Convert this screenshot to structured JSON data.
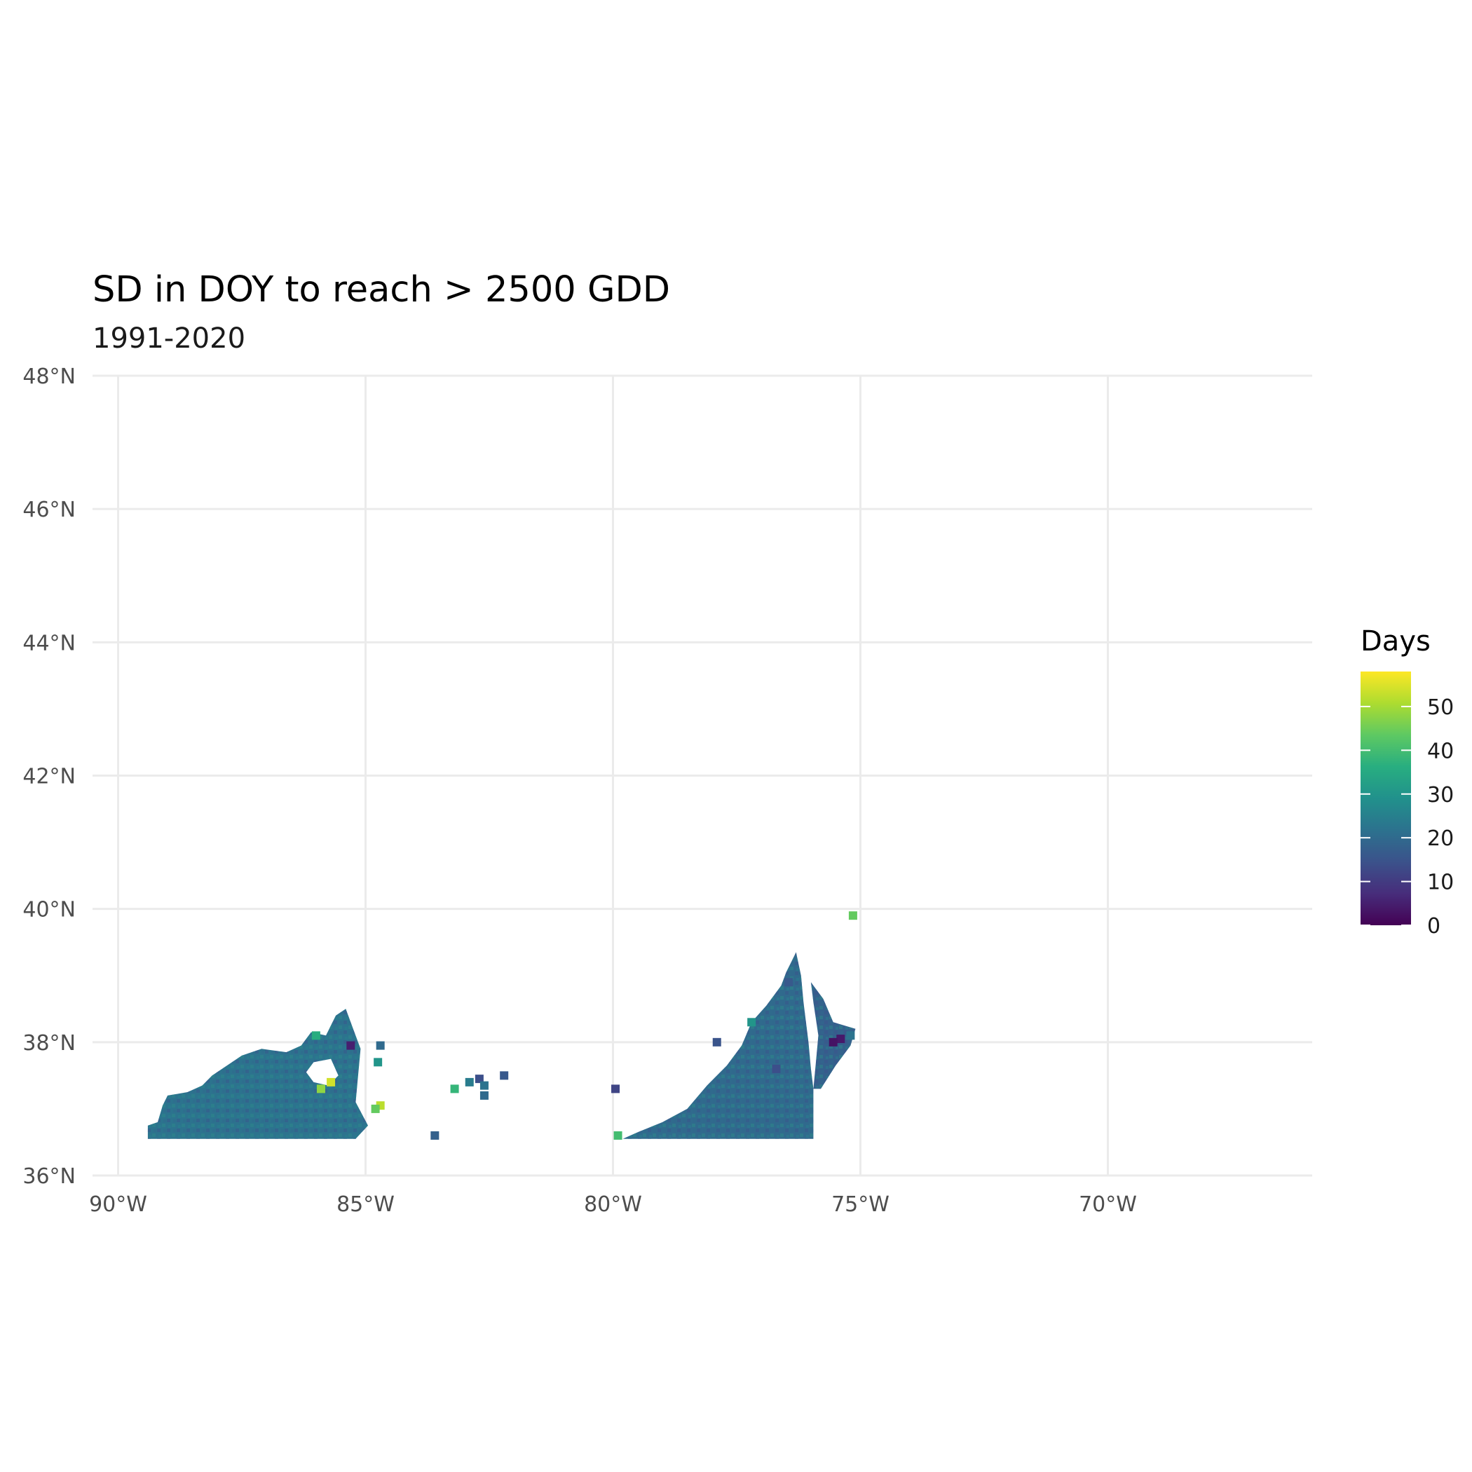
{
  "chart_data": {
    "type": "heatmap",
    "title": "SD in DOY to reach > 2500 GDD",
    "subtitle": "1991-2020",
    "xlabel": "",
    "ylabel": "",
    "x_range": [
      -90.5,
      -66.4
    ],
    "y_range": [
      36,
      48
    ],
    "x_ticks": [
      -90,
      -85,
      -80,
      -75,
      -70
    ],
    "x_tick_labels": [
      "90°W",
      "85°W",
      "80°W",
      "75°W",
      "70°W"
    ],
    "y_ticks": [
      36,
      38,
      40,
      42,
      44,
      46,
      48
    ],
    "y_tick_labels": [
      "36°N",
      "38°N",
      "40°N",
      "42°N",
      "44°N",
      "46°N",
      "48°N"
    ],
    "grid": true,
    "legend": {
      "title": "Days",
      "position": "right",
      "colormap": "viridis",
      "limits": [
        0,
        58
      ],
      "ticks": [
        0,
        10,
        20,
        30,
        40,
        50
      ],
      "tick_labels": [
        "0",
        "10",
        "20",
        "30",
        "40",
        "50"
      ]
    },
    "regions": [
      {
        "name": "western",
        "typical_value": 22,
        "outline": [
          [
            -89.4,
            36.55
          ],
          [
            -89.4,
            36.75
          ],
          [
            -89.2,
            36.8
          ],
          [
            -89.1,
            37.05
          ],
          [
            -89.0,
            37.2
          ],
          [
            -88.6,
            37.25
          ],
          [
            -88.3,
            37.35
          ],
          [
            -88.1,
            37.5
          ],
          [
            -87.8,
            37.65
          ],
          [
            -87.5,
            37.8
          ],
          [
            -87.1,
            37.9
          ],
          [
            -86.6,
            37.85
          ],
          [
            -86.3,
            37.95
          ],
          [
            -86.1,
            38.15
          ],
          [
            -85.8,
            38.1
          ],
          [
            -85.6,
            38.4
          ],
          [
            -85.4,
            38.5
          ],
          [
            -85.25,
            38.2
          ],
          [
            -85.1,
            37.9
          ],
          [
            -85.15,
            37.5
          ],
          [
            -85.2,
            37.1
          ],
          [
            -84.95,
            36.75
          ],
          [
            -85.2,
            36.55
          ]
        ],
        "holes": [
          [
            [
              -86.2,
              37.55
            ],
            [
              -86.05,
              37.7
            ],
            [
              -85.7,
              37.75
            ],
            [
              -85.55,
              37.5
            ],
            [
              -85.75,
              37.35
            ],
            [
              -86.05,
              37.4
            ]
          ]
        ]
      },
      {
        "name": "eastern",
        "typical_value": 20,
        "outline": [
          [
            -79.8,
            36.55
          ],
          [
            -79.5,
            36.65
          ],
          [
            -79.0,
            36.8
          ],
          [
            -78.5,
            37.0
          ],
          [
            -78.1,
            37.35
          ],
          [
            -77.7,
            37.65
          ],
          [
            -77.4,
            37.95
          ],
          [
            -77.2,
            38.3
          ],
          [
            -76.9,
            38.55
          ],
          [
            -76.6,
            38.85
          ],
          [
            -76.5,
            39.05
          ],
          [
            -76.3,
            39.35
          ],
          [
            -76.2,
            39.0
          ],
          [
            -76.15,
            38.6
          ],
          [
            -76.05,
            38.0
          ],
          [
            -76.0,
            37.6
          ],
          [
            -75.95,
            37.3
          ],
          [
            -75.95,
            36.55
          ]
        ],
        "holes": []
      },
      {
        "name": "delmarva",
        "typical_value": 18,
        "outline": [
          [
            -76.0,
            38.9
          ],
          [
            -75.75,
            38.65
          ],
          [
            -75.55,
            38.3
          ],
          [
            -75.1,
            38.2
          ],
          [
            -75.2,
            37.95
          ],
          [
            -75.5,
            37.65
          ],
          [
            -75.8,
            37.3
          ],
          [
            -75.95,
            37.3
          ],
          [
            -75.9,
            37.7
          ],
          [
            -75.85,
            38.1
          ],
          [
            -75.95,
            38.6
          ]
        ],
        "holes": []
      }
    ],
    "patches": [
      {
        "lon": -86.0,
        "lat": 38.1,
        "value": 36
      },
      {
        "lon": -85.7,
        "lat": 37.4,
        "value": 54
      },
      {
        "lon": -85.9,
        "lat": 37.3,
        "value": 48
      },
      {
        "lon": -85.3,
        "lat": 37.95,
        "value": 5
      },
      {
        "lon": -84.7,
        "lat": 37.95,
        "value": 20
      },
      {
        "lon": -84.75,
        "lat": 37.7,
        "value": 30
      },
      {
        "lon": -84.7,
        "lat": 37.05,
        "value": 52
      },
      {
        "lon": -84.8,
        "lat": 37.0,
        "value": 44
      },
      {
        "lon": -83.6,
        "lat": 36.6,
        "value": 18
      },
      {
        "lon": -83.2,
        "lat": 37.3,
        "value": 38
      },
      {
        "lon": -82.9,
        "lat": 37.4,
        "value": 24
      },
      {
        "lon": -82.7,
        "lat": 37.45,
        "value": 14
      },
      {
        "lon": -82.6,
        "lat": 37.35,
        "value": 22
      },
      {
        "lon": -82.2,
        "lat": 37.5,
        "value": 16
      },
      {
        "lon": -82.6,
        "lat": 37.2,
        "value": 20
      },
      {
        "lon": -79.95,
        "lat": 37.3,
        "value": 12
      },
      {
        "lon": -79.9,
        "lat": 36.6,
        "value": 40
      },
      {
        "lon": -77.9,
        "lat": 38.0,
        "value": 15
      },
      {
        "lon": -76.7,
        "lat": 37.6,
        "value": 14
      },
      {
        "lon": -75.4,
        "lat": 38.05,
        "value": 4
      },
      {
        "lon": -75.55,
        "lat": 38.0,
        "value": 3
      },
      {
        "lon": -75.2,
        "lat": 38.1,
        "value": 22
      },
      {
        "lon": -75.15,
        "lat": 39.9,
        "value": 44
      },
      {
        "lon": -76.45,
        "lat": 38.9,
        "value": 16
      },
      {
        "lon": -77.2,
        "lat": 38.3,
        "value": 30
      }
    ]
  }
}
